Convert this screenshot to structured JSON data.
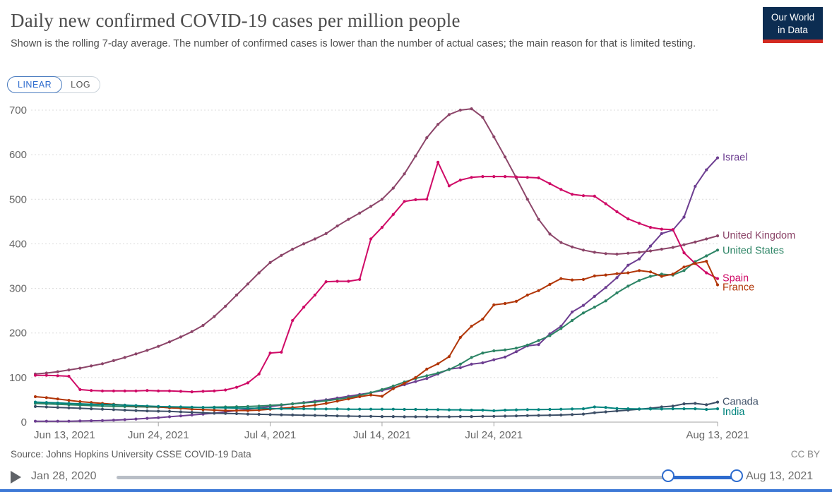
{
  "header": {
    "title": "Daily new confirmed COVID-19 cases per million people",
    "subtitle": "Shown is the rolling 7-day average. The number of confirmed cases is lower than the number of actual cases; the main reason for that is limited testing.",
    "logo_line1": "Our World",
    "logo_line2": "in Data"
  },
  "controls": {
    "linear": "LINEAR",
    "log": "LOG"
  },
  "colors": {
    "accent_blue": "#2d6bce",
    "logo_bg": "#0c2d52",
    "logo_bar": "#d42b21",
    "bottom_bar": "#3d79d6",
    "gridline": "#dcdcdc",
    "axis_text": "#666666"
  },
  "chart_data": {
    "type": "line",
    "title": "Daily new confirmed COVID-19 cases per million people",
    "xlabel": "",
    "ylabel": "",
    "x_start": "Jun 13, 2021",
    "x_end": "Aug 13, 2021",
    "x_interval": "daily",
    "x_ticks": [
      {
        "day": 0,
        "label": "Jun 13, 2021"
      },
      {
        "day": 11,
        "label": "Jun 24, 2021"
      },
      {
        "day": 21,
        "label": "Jul 4, 2021"
      },
      {
        "day": 31,
        "label": "Jul 14, 2021"
      },
      {
        "day": 41,
        "label": "Jul 24, 2021"
      },
      {
        "day": 61,
        "label": "Aug 13, 2021"
      }
    ],
    "ylim": [
      0,
      700
    ],
    "yticks": [
      0,
      100,
      200,
      300,
      400,
      500,
      600,
      700
    ],
    "grid": "horizontal-dashed",
    "legend": "end-of-line-labels",
    "series": [
      {
        "name": "Israel",
        "color": "#6D3E91",
        "values": [
          2,
          2,
          2,
          2,
          2.5,
          3,
          3.5,
          4.5,
          5.5,
          7,
          8.5,
          10,
          12,
          14,
          16,
          18,
          20,
          23,
          26,
          29,
          32,
          35,
          38,
          41,
          44,
          47,
          50,
          54,
          58,
          62,
          66,
          71,
          77,
          84,
          91,
          98,
          108,
          119,
          122,
          130,
          133,
          140,
          146,
          158,
          171,
          174,
          198,
          215,
          247,
          262,
          282,
          302,
          324,
          352,
          366,
          395,
          423,
          431,
          460,
          529,
          566,
          593
        ]
      },
      {
        "name": "United Kingdom",
        "color": "#8C4569",
        "values": [
          108,
          110,
          113,
          117,
          121,
          126,
          131,
          138,
          145,
          153,
          161,
          170,
          180,
          191,
          203,
          217,
          237,
          260,
          285,
          310,
          335,
          358,
          374,
          388,
          400,
          411,
          423,
          440,
          455,
          469,
          484,
          500,
          525,
          557,
          597,
          638,
          668,
          690,
          700,
          703,
          684,
          640,
          595,
          548,
          500,
          455,
          422,
          403,
          393,
          386,
          381,
          378,
          377,
          379,
          381,
          384,
          388,
          392,
          398,
          404,
          411,
          418
        ]
      },
      {
        "name": "United States",
        "color": "#2C8465",
        "values": [
          42,
          41,
          40,
          39,
          38,
          37,
          36,
          35.5,
          35,
          34.5,
          34,
          33.5,
          33,
          33,
          33,
          33,
          33.5,
          34,
          34.5,
          35,
          36,
          37.5,
          39,
          41,
          43,
          45,
          48,
          51,
          55,
          60,
          66,
          73,
          81,
          90,
          98,
          104,
          110,
          118,
          130,
          145,
          155,
          160,
          162,
          166,
          173,
          183,
          194,
          210,
          228,
          245,
          258,
          272,
          290,
          305,
          318,
          327,
          332,
          330,
          340,
          360,
          373,
          386
        ]
      },
      {
        "name": "Spain",
        "color": "#CF0A66",
        "values": [
          105,
          105,
          104,
          103,
          73,
          71,
          70,
          70,
          70,
          70,
          71,
          70,
          70,
          69,
          68,
          69,
          70,
          72,
          78,
          88,
          108,
          155,
          157,
          228,
          258,
          285,
          315,
          316,
          316,
          320,
          411,
          437,
          466,
          495,
          499,
          500,
          583,
          530,
          543,
          549,
          551,
          551,
          551,
          550,
          549,
          548,
          535,
          522,
          511,
          508,
          507,
          490,
          472,
          456,
          446,
          437,
          433,
          432,
          380,
          356,
          335,
          322
        ]
      },
      {
        "name": "France",
        "color": "#B13507",
        "values": [
          57,
          55,
          52,
          49,
          46,
          44,
          42,
          40,
          38,
          36,
          35,
          34,
          32,
          31,
          29,
          28,
          27,
          26,
          26,
          26,
          27,
          29,
          31,
          33,
          35,
          38,
          42,
          47,
          52,
          57,
          61,
          58,
          75,
          87,
          100,
          119,
          131,
          147,
          190,
          215,
          231,
          263,
          266,
          271,
          285,
          295,
          309,
          322,
          319,
          320,
          328,
          330,
          333,
          335,
          340,
          337,
          327,
          332,
          348,
          356,
          361,
          308
        ]
      },
      {
        "name": "Canada",
        "color": "#3C4E66",
        "values": [
          35,
          34,
          33,
          32,
          31,
          30,
          29,
          28,
          27,
          26,
          25,
          24.5,
          24,
          23,
          22,
          21,
          20,
          19.5,
          19,
          18,
          17.5,
          17,
          16.5,
          16,
          15.5,
          15,
          14.5,
          14,
          13.5,
          13,
          13,
          12.5,
          12.5,
          12,
          12,
          12,
          12,
          12,
          12.5,
          12.5,
          13,
          13,
          13.5,
          14,
          14.5,
          15,
          15.5,
          16,
          17,
          18,
          21,
          23,
          25,
          27,
          29,
          31,
          34,
          36,
          41,
          42,
          39,
          45
        ]
      },
      {
        "name": "India",
        "color": "#00847E",
        "values": [
          45,
          44,
          43,
          42,
          41,
          40,
          39.5,
          39,
          38,
          37,
          36,
          35,
          34.5,
          34,
          33.5,
          33,
          32.5,
          32,
          31.5,
          31,
          31,
          30.5,
          30,
          30,
          30,
          29.5,
          29.5,
          29.5,
          29,
          29,
          29,
          29,
          29,
          28.5,
          28.5,
          28,
          28,
          27.5,
          27.5,
          27,
          27,
          25.5,
          27,
          27.5,
          28,
          28,
          28.5,
          29,
          29.5,
          30,
          34,
          33,
          30.5,
          30,
          29.5,
          29.5,
          29.5,
          30,
          30,
          30,
          28.5,
          30
        ]
      }
    ]
  },
  "footer": {
    "source_label": "Source:",
    "source_text": "Johns Hopkins University CSSE COVID-19 Data",
    "license": "CC BY"
  },
  "timeline": {
    "start": "Jan 28, 2020",
    "end": "Aug 13, 2021"
  }
}
